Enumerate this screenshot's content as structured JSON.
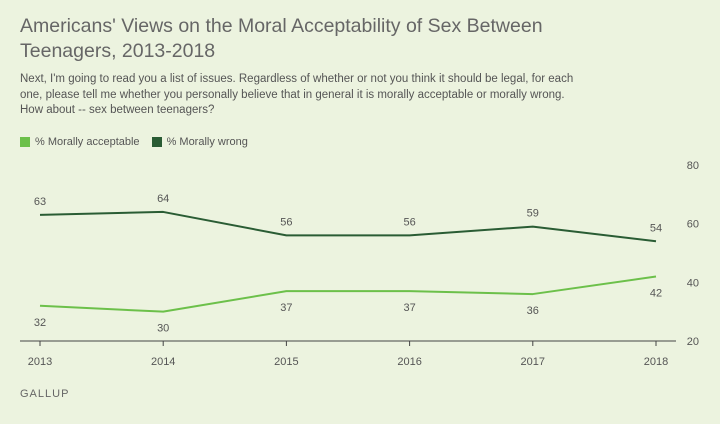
{
  "title": "Americans' Views on the Moral Acceptability of Sex Between Teenagers, 2013-2018",
  "subtitle": "Next, I'm going to read you a list of issues. Regardless of whether or not you think it should be legal, for each one, please tell me whether you personally believe that in general it is morally acceptable or morally wrong. How about -- sex between teenagers?",
  "source": "GALLUP",
  "chart_data": {
    "type": "line",
    "x": [
      "2013",
      "2014",
      "2015",
      "2016",
      "2017",
      "2018"
    ],
    "series": [
      {
        "name": "% Morally acceptable",
        "color": "#6cc04a",
        "values": [
          32,
          30,
          37,
          37,
          36,
          42
        ]
      },
      {
        "name": "% Morally wrong",
        "color": "#2a5c34",
        "values": [
          63,
          64,
          56,
          56,
          59,
          54
        ]
      }
    ],
    "yticks": [
      "20",
      "40",
      "60",
      "80"
    ],
    "ylim": [
      20,
      80
    ],
    "xlabel": "",
    "ylabel": "",
    "grid": false,
    "legend": "top-left"
  }
}
